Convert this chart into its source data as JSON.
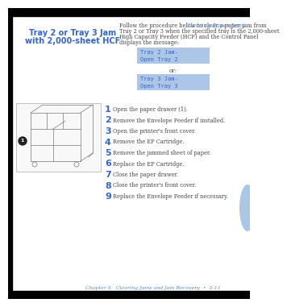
{
  "bg_color": "#ffffff",
  "top_bar_color": "#000000",
  "left_bar_color": "#000000",
  "bottom_bar_color": "#000000",
  "header_text": "Clearing Paper Jams",
  "header_text_color": "#5588cc",
  "title_line1": "Tray 2 or Tray 3 Jam",
  "title_line2": "with 2,000-sheet HCF",
  "title_color": "#3366cc",
  "body_text_line1": "Follow the procedure below to clear a paper jam from",
  "body_text_line2": "Tray 2 or Tray 3 when the specified tray is the 2,000-sheet",
  "body_text_line3": "High Capacity Feeder (HCF) and the Control Panel",
  "body_text_line4": "displays the message:",
  "body_color": "#444444",
  "box1_text": "Tray 2 Jam-\nOpen Tray 2",
  "box2_text": "Tray 3 Jam-\nOpen Tray 3",
  "box_bg": "#adc6e8",
  "box_text_color": "#3366cc",
  "or_text": "or:",
  "or_color": "#444444",
  "steps": [
    {
      "num": "1",
      "text": "Open the paper drawer (1)."
    },
    {
      "num": "2",
      "text": "Remove the Envelope Feeder if installed."
    },
    {
      "num": "3",
      "text": "Open the printer's front cover."
    },
    {
      "num": "4",
      "text": "Remove the EP Cartridge."
    },
    {
      "num": "5",
      "text": "Remove the jammed sheet of paper."
    },
    {
      "num": "6",
      "text": "Replace the EP Cartridge."
    },
    {
      "num": "7",
      "text": "Close the paper drawer."
    },
    {
      "num": "8",
      "text": "Close the printer's front cover."
    },
    {
      "num": "9",
      "text": "Replace the Envelope Feeder if necessary."
    }
  ],
  "step_num_color": "#3366cc",
  "step_text_color": "#444444",
  "footer_text": "Chapter 5:  Clearing Jams and Jam Recovery  •  5-11",
  "footer_color": "#5588cc",
  "tab_color": "#adc6e8",
  "img_border": "#aaaaaa",
  "img_fill": "#f8f8f8"
}
